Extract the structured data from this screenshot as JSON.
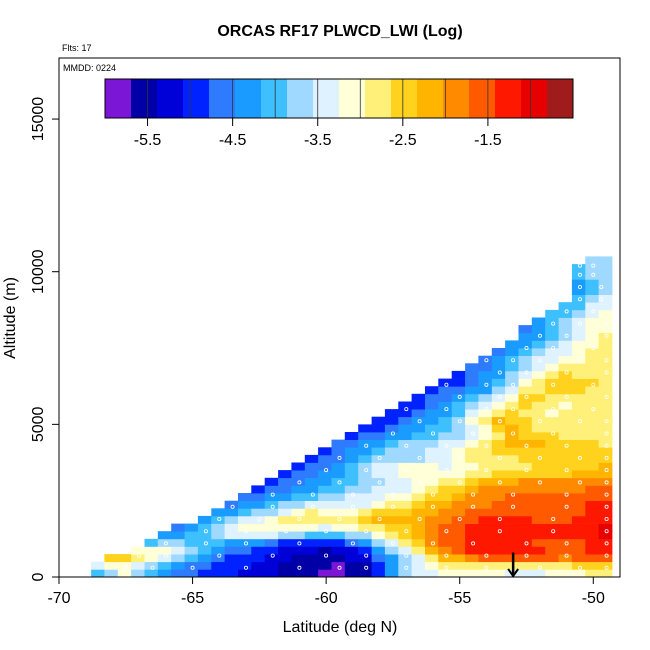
{
  "chart_data": {
    "type": "heatmap",
    "title": "ORCAS RF17 PLWCD_LWI (Log)",
    "flights_note": "Flts: 17",
    "date_note": "MMDD: 0224",
    "xlabel": "Latitude (deg N)",
    "ylabel": "Altitude (m)",
    "xlim": [
      -70,
      -49
    ],
    "ylim": [
      0,
      17000
    ],
    "x_ticks": [
      -70,
      -65,
      -60,
      -55,
      -50
    ],
    "y_ticks": [
      0,
      5000,
      10000,
      15000
    ],
    "grid": false,
    "colorbar": {
      "placement": "top-inset",
      "range": [
        -6.0,
        -0.5
      ],
      "tick_values": [
        -5.5,
        -4.5,
        -3.5,
        -2.5,
        -1.5
      ],
      "colors": [
        "#7b16d6",
        "#0000a6",
        "#0000d8",
        "#0022ff",
        "#2e7bff",
        "#1a9bff",
        "#3ec0ff",
        "#9fd9ff",
        "#dff2ff",
        "#ffffd8",
        "#fff07a",
        "#ffd21e",
        "#ffb400",
        "#ff8a00",
        "#ff5a00",
        "#ff1800",
        "#e60000",
        "#a01c1c"
      ]
    },
    "cell_size": {
      "dlat": 0.5,
      "dalt": 250
    },
    "envelope": {
      "lat": [
        -68.8,
        -66.0,
        -63.0,
        -60.0,
        -57.0,
        -54.0,
        -51.0,
        -50.5,
        -49.7
      ],
      "alt_max": [
        250,
        1300,
        2650,
        4100,
        5550,
        7150,
        9000,
        10300,
        10300
      ]
    },
    "layers": [
      {
        "alt": 300,
        "values": [
          [
            -68.8,
            -4.2
          ],
          [
            -67.5,
            -3.2
          ],
          [
            -66.5,
            -4.2
          ],
          [
            -65,
            -4.8
          ],
          [
            -63,
            -5.1
          ],
          [
            -61,
            -5.6
          ],
          [
            -59.5,
            -5.8
          ],
          [
            -58.5,
            -5.6
          ],
          [
            -57,
            -3.6
          ],
          [
            -55.5,
            -3.2
          ],
          [
            -54,
            -3.3
          ],
          [
            -52,
            -3.4
          ],
          [
            -50.5,
            -3.0
          ],
          [
            -49.5,
            -2.8
          ]
        ]
      },
      {
        "alt": 700,
        "values": [
          [
            -68.5,
            -1.8
          ],
          [
            -67,
            -2.5
          ],
          [
            -66,
            -3.0
          ],
          [
            -64,
            -4.6
          ],
          [
            -62,
            -5.2
          ],
          [
            -60,
            -5.6
          ],
          [
            -58.5,
            -5.0
          ],
          [
            -57,
            -3.8
          ],
          [
            -55.5,
            -2.0
          ],
          [
            -54,
            -1.2
          ],
          [
            -52.5,
            -1.0
          ],
          [
            -51,
            -1.3
          ],
          [
            -49.5,
            -1.1
          ]
        ]
      },
      {
        "alt": 1100,
        "values": [
          [
            -67.5,
            -4.4
          ],
          [
            -66,
            -3.5
          ],
          [
            -64.5,
            -4.0
          ],
          [
            -63,
            -4.6
          ],
          [
            -61,
            -5.3
          ],
          [
            -59,
            -5.0
          ],
          [
            -57.5,
            -3.2
          ],
          [
            -56,
            -1.8
          ],
          [
            -54.5,
            -1.1
          ],
          [
            -52.5,
            -1.5
          ],
          [
            -51,
            -1.8
          ],
          [
            -49.5,
            -1.2
          ]
        ]
      },
      {
        "alt": 1500,
        "values": [
          [
            -66,
            -4.8
          ],
          [
            -64.5,
            -3.8
          ],
          [
            -63,
            -2.6
          ],
          [
            -61.5,
            -3.0
          ],
          [
            -60,
            -3.6
          ],
          [
            -58.5,
            -3.2
          ],
          [
            -57,
            -2.4
          ],
          [
            -55.5,
            -1.6
          ],
          [
            -53.5,
            -1.1
          ],
          [
            -51.5,
            -1.1
          ],
          [
            -49.5,
            -0.9
          ]
        ]
      },
      {
        "alt": 1900,
        "values": [
          [
            -65.5,
            -4.8
          ],
          [
            -64,
            -4.0
          ],
          [
            -62.5,
            -3.4
          ],
          [
            -61,
            -2.5
          ],
          [
            -59.5,
            -2.6
          ],
          [
            -58,
            -2.0
          ],
          [
            -56.5,
            -2.2
          ],
          [
            -55,
            -1.5
          ],
          [
            -53.5,
            -1.3
          ],
          [
            -51.5,
            -1.6
          ],
          [
            -49.5,
            -1.4
          ]
        ]
      },
      {
        "alt": 2300,
        "values": [
          [
            -65,
            -5.2
          ],
          [
            -63.5,
            -4.4
          ],
          [
            -62,
            -3.9
          ],
          [
            -60.5,
            -3.2
          ],
          [
            -59,
            -3.6
          ],
          [
            -57.5,
            -2.8
          ],
          [
            -56,
            -2.1
          ],
          [
            -54.5,
            -1.8
          ],
          [
            -53,
            -1.6
          ],
          [
            -51,
            -1.4
          ],
          [
            -49.5,
            -1.2
          ]
        ]
      },
      {
        "alt": 2700,
        "values": [
          [
            -63.5,
            -5.0
          ],
          [
            -62,
            -4.6
          ],
          [
            -60.5,
            -4.0
          ],
          [
            -59,
            -3.4
          ],
          [
            -57.5,
            -3.3
          ],
          [
            -56,
            -2.7
          ],
          [
            -54.5,
            -1.9
          ],
          [
            -53,
            -1.7
          ],
          [
            -51,
            -1.7
          ],
          [
            -49.5,
            -1.6
          ]
        ]
      },
      {
        "alt": 3100,
        "values": [
          [
            -62.5,
            -5.0
          ],
          [
            -61,
            -4.6
          ],
          [
            -59.5,
            -4.2
          ],
          [
            -58,
            -3.8
          ],
          [
            -56.5,
            -3.3
          ],
          [
            -55,
            -2.6
          ],
          [
            -53.5,
            -2.0
          ],
          [
            -52,
            -1.8
          ],
          [
            -50.5,
            -1.9
          ],
          [
            -49.5,
            -1.7
          ]
        ]
      },
      {
        "alt": 3500,
        "values": [
          [
            -61.5,
            -5.0
          ],
          [
            -60,
            -4.4
          ],
          [
            -58.5,
            -3.5
          ],
          [
            -57,
            -2.8
          ],
          [
            -55.5,
            -3.3
          ],
          [
            -54,
            -3.0
          ],
          [
            -52.5,
            -2.7
          ],
          [
            -51,
            -2.6
          ],
          [
            -49.5,
            -2.3
          ]
        ]
      },
      {
        "alt": 3900,
        "values": [
          [
            -61,
            -5.2
          ],
          [
            -59.5,
            -4.5
          ],
          [
            -58,
            -3.9
          ],
          [
            -56.5,
            -3.7
          ],
          [
            -55,
            -3.0
          ],
          [
            -53.5,
            -2.7
          ],
          [
            -52,
            -2.6
          ],
          [
            -50.5,
            -2.5
          ],
          [
            -49.5,
            -2.3
          ]
        ]
      },
      {
        "alt": 4300,
        "values": [
          [
            -60,
            -4.9
          ],
          [
            -58.5,
            -4.2
          ],
          [
            -57,
            -3.6
          ],
          [
            -55.5,
            -3.3
          ],
          [
            -54,
            -2.6
          ],
          [
            -52.5,
            -2.1
          ],
          [
            -51,
            -2.5
          ],
          [
            -49.5,
            -2.6
          ]
        ]
      },
      {
        "alt": 4700,
        "values": [
          [
            -59,
            -5.1
          ],
          [
            -57.5,
            -4.5
          ],
          [
            -56,
            -4.0
          ],
          [
            -54.5,
            -3.7
          ],
          [
            -53,
            -2.3
          ],
          [
            -51.5,
            -2.7
          ],
          [
            -49.5,
            -2.9
          ]
        ]
      },
      {
        "alt": 5100,
        "values": [
          [
            -58,
            -5.0
          ],
          [
            -56.5,
            -4.4
          ],
          [
            -55,
            -3.5
          ],
          [
            -53.5,
            -2.0
          ],
          [
            -52,
            -3.0
          ],
          [
            -50.5,
            -2.6
          ],
          [
            -49.5,
            -2.7
          ]
        ]
      },
      {
        "alt": 5500,
        "values": [
          [
            -57,
            -5.0
          ],
          [
            -55.5,
            -4.4
          ],
          [
            -54,
            -3.3
          ],
          [
            -53,
            -2.5
          ],
          [
            -51.5,
            -3.1
          ],
          [
            -50,
            -2.9
          ]
        ]
      },
      {
        "alt": 5900,
        "values": [
          [
            -56.5,
            -4.8
          ],
          [
            -55,
            -4.3
          ],
          [
            -53.5,
            -3.6
          ],
          [
            -52.5,
            -2.4
          ],
          [
            -51,
            -2.8
          ],
          [
            -49.5,
            -2.7
          ]
        ]
      },
      {
        "alt": 6300,
        "values": [
          [
            -55.5,
            -5.0
          ],
          [
            -54,
            -4.4
          ],
          [
            -53,
            -3.5
          ],
          [
            -51.5,
            -2.4
          ],
          [
            -50,
            -2.6
          ]
        ]
      },
      {
        "alt": 6700,
        "values": [
          [
            -55,
            -4.8
          ],
          [
            -53.5,
            -4.2
          ],
          [
            -52.5,
            -3.4
          ],
          [
            -51,
            -2.6
          ],
          [
            -49.5,
            -2.8
          ]
        ]
      },
      {
        "alt": 7100,
        "values": [
          [
            -54,
            -4.6
          ],
          [
            -53,
            -4.0
          ],
          [
            -52,
            -3.4
          ],
          [
            -50.5,
            -3.0
          ],
          [
            -49.5,
            -2.9
          ]
        ]
      },
      {
        "alt": 7500,
        "values": [
          [
            -53.5,
            -4.6
          ],
          [
            -52.5,
            -4.1
          ],
          [
            -51.5,
            -3.5
          ],
          [
            -50,
            -2.9
          ]
        ]
      },
      {
        "alt": 7900,
        "values": [
          [
            -53,
            -4.6
          ],
          [
            -52,
            -4.3
          ],
          [
            -51,
            -3.6
          ],
          [
            -49.5,
            -2.9
          ]
        ]
      },
      {
        "alt": 8300,
        "values": [
          [
            -52.5,
            -4.5
          ],
          [
            -51.5,
            -3.9
          ],
          [
            -50.5,
            -3.3
          ],
          [
            -49.5,
            -3.0
          ]
        ]
      },
      {
        "alt": 8700,
        "values": [
          [
            -52,
            -4.4
          ],
          [
            -51,
            -4.0
          ],
          [
            -50,
            -3.3
          ]
        ]
      },
      {
        "alt": 9100,
        "values": [
          [
            -51.5,
            -4.4
          ],
          [
            -50.5,
            -4.1
          ],
          [
            -49.7,
            -3.5
          ]
        ]
      },
      {
        "alt": 9500,
        "values": [
          [
            -51,
            -4.6
          ],
          [
            -50.5,
            -4.3
          ],
          [
            -49.7,
            -3.8
          ]
        ]
      },
      {
        "alt": 9900,
        "values": [
          [
            -50.5,
            -4.2
          ],
          [
            -50,
            -3.8
          ]
        ]
      },
      {
        "alt": 10200,
        "values": [
          [
            -50.5,
            -3.9
          ],
          [
            -50,
            -3.6
          ]
        ]
      }
    ],
    "annotations": [
      {
        "type": "arrow-down",
        "lat": -53,
        "alt_from": 800,
        "alt_to": 0
      }
    ]
  }
}
